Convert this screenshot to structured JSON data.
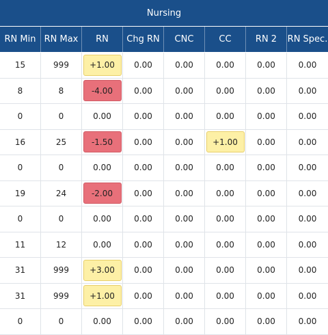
{
  "banner": "Nursing",
  "columns": [
    "RN Min",
    "RN Max",
    "RN",
    "Chg RN",
    "CNC",
    "CC",
    "RN 2",
    "RN Spec."
  ],
  "rows": [
    {
      "min": "15",
      "max": "999",
      "rn": "+1.00",
      "rn_state": "pos",
      "chg": "0.00",
      "cnc": "0.00",
      "cc": "0.00",
      "cc_state": "",
      "rn2": "0.00",
      "spec": "0.00"
    },
    {
      "min": "8",
      "max": "8",
      "rn": "-4.00",
      "rn_state": "neg",
      "chg": "0.00",
      "cnc": "0.00",
      "cc": "0.00",
      "cc_state": "",
      "rn2": "0.00",
      "spec": "0.00"
    },
    {
      "min": "0",
      "max": "0",
      "rn": "0.00",
      "rn_state": "",
      "chg": "0.00",
      "cnc": "0.00",
      "cc": "0.00",
      "cc_state": "",
      "rn2": "0.00",
      "spec": "0.00"
    },
    {
      "min": "16",
      "max": "25",
      "rn": "-1.50",
      "rn_state": "neg",
      "chg": "0.00",
      "cnc": "0.00",
      "cc": "+1.00",
      "cc_state": "pos",
      "rn2": "0.00",
      "spec": "0.00"
    },
    {
      "min": "0",
      "max": "0",
      "rn": "0.00",
      "rn_state": "",
      "chg": "0.00",
      "cnc": "0.00",
      "cc": "0.00",
      "cc_state": "",
      "rn2": "0.00",
      "spec": "0.00"
    },
    {
      "min": "19",
      "max": "24",
      "rn": "-2.00",
      "rn_state": "neg",
      "chg": "0.00",
      "cnc": "0.00",
      "cc": "0.00",
      "cc_state": "",
      "rn2": "0.00",
      "spec": "0.00"
    },
    {
      "min": "0",
      "max": "0",
      "rn": "0.00",
      "rn_state": "",
      "chg": "0.00",
      "cnc": "0.00",
      "cc": "0.00",
      "cc_state": "",
      "rn2": "0.00",
      "spec": "0.00"
    },
    {
      "min": "11",
      "max": "12",
      "rn": "0.00",
      "rn_state": "",
      "chg": "0.00",
      "cnc": "0.00",
      "cc": "0.00",
      "cc_state": "",
      "rn2": "0.00",
      "spec": "0.00"
    },
    {
      "min": "31",
      "max": "999",
      "rn": "+3.00",
      "rn_state": "pos",
      "chg": "0.00",
      "cnc": "0.00",
      "cc": "0.00",
      "cc_state": "",
      "rn2": "0.00",
      "spec": "0.00"
    },
    {
      "min": "31",
      "max": "999",
      "rn": "+1.00",
      "rn_state": "pos",
      "chg": "0.00",
      "cnc": "0.00",
      "cc": "0.00",
      "cc_state": "",
      "rn2": "0.00",
      "spec": "0.00"
    },
    {
      "min": "0",
      "max": "0",
      "rn": "0.00",
      "rn_state": "",
      "chg": "0.00",
      "cnc": "0.00",
      "cc": "0.00",
      "cc_state": "",
      "rn2": "0.00",
      "spec": "0.00"
    }
  ]
}
